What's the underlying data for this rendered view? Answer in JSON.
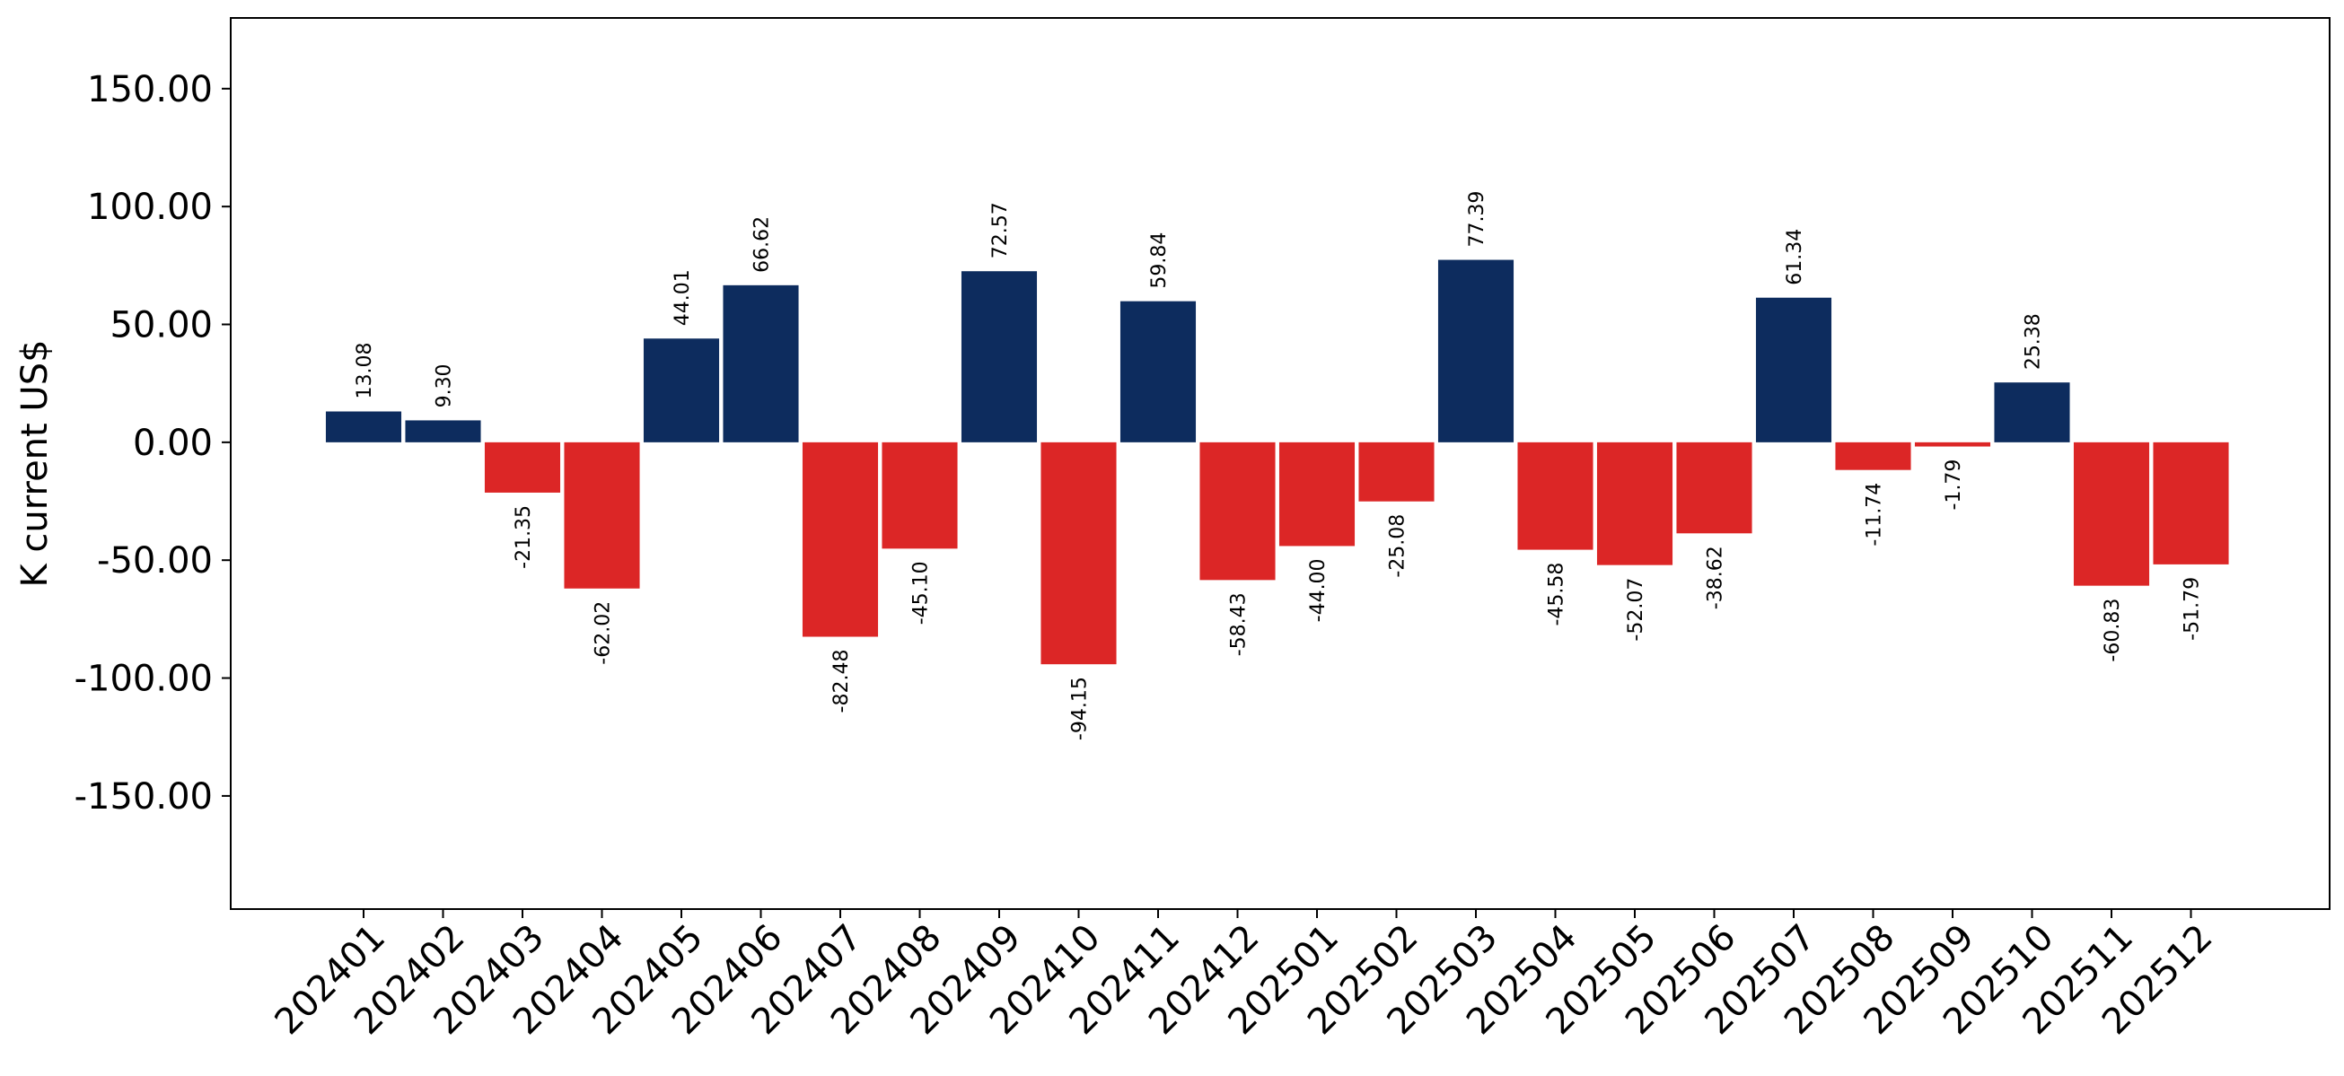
{
  "chart_data": {
    "type": "bar",
    "title": "",
    "xlabel": "",
    "ylabel": "K current US$",
    "ylim": [
      -198,
      180
    ],
    "yticks": [
      -150,
      -100,
      -50,
      0,
      50,
      100,
      150
    ],
    "ytick_labels": [
      "-150.00",
      "-100.00",
      "-50.00",
      "0.00",
      "50.00",
      "100.00",
      "150.00"
    ],
    "grid": false,
    "legend": "none",
    "positive_color": "#0d2c5e",
    "negative_color": "#dc2626",
    "categories": [
      "202401",
      "202402",
      "202403",
      "202404",
      "202405",
      "202406",
      "202407",
      "202408",
      "202409",
      "202410",
      "202411",
      "202412",
      "202501",
      "202502",
      "202503",
      "202504",
      "202505",
      "202506",
      "202507",
      "202508",
      "202509",
      "202510",
      "202511",
      "202512"
    ],
    "values": [
      13.08,
      9.3,
      -21.35,
      -62.02,
      44.01,
      66.62,
      -82.48,
      -45.1,
      72.57,
      -94.15,
      59.84,
      -58.43,
      -44.0,
      -25.08,
      77.39,
      -45.58,
      -52.07,
      -38.62,
      61.34,
      -11.74,
      -1.79,
      25.38,
      -60.83,
      -51.79
    ],
    "value_labels": [
      "13.08",
      "9.30",
      "-21.35",
      "-62.02",
      "44.01",
      "66.62",
      "-82.48",
      "-45.10",
      "72.57",
      "-94.15",
      "59.84",
      "-58.43",
      "-44.00",
      "-25.08",
      "77.39",
      "-45.58",
      "-52.07",
      "-38.62",
      "61.34",
      "-11.74",
      "-1.79",
      "25.38",
      "-60.83",
      "-51.79"
    ]
  }
}
